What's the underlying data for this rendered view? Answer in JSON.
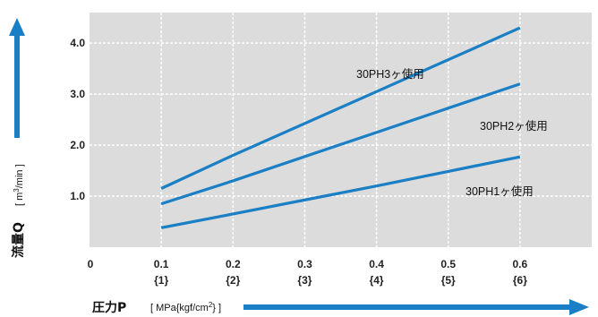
{
  "chart_data": {
    "type": "line",
    "title": "",
    "xlabel": "圧力P",
    "xunit": "MPa{kgf/cm²}",
    "xunit_parts": {
      "pre": "MPa{kgf/cm",
      "sup": "2",
      "post": "}"
    },
    "ylabel": "流量Q",
    "yunit": "m³/min",
    "yunit_parts": {
      "pre": "m",
      "sup": "3",
      "post": "/min"
    },
    "xlim": [
      0,
      0.7
    ],
    "ylim": [
      0,
      4.6
    ],
    "grid": true,
    "x_ticks": [
      {
        "v": 0,
        "label": "0",
        "sub": ""
      },
      {
        "v": 0.1,
        "label": "0.1",
        "sub": "{1}"
      },
      {
        "v": 0.2,
        "label": "0.2",
        "sub": "{2}"
      },
      {
        "v": 0.3,
        "label": "0.3",
        "sub": "{3}"
      },
      {
        "v": 0.4,
        "label": "0.4",
        "sub": "{4}"
      },
      {
        "v": 0.5,
        "label": "0.5",
        "sub": "{5}"
      },
      {
        "v": 0.6,
        "label": "0.6",
        "sub": "{6}"
      }
    ],
    "y_ticks": [
      {
        "v": 1.0,
        "label": "1.0"
      },
      {
        "v": 2.0,
        "label": "2.0"
      },
      {
        "v": 3.0,
        "label": "3.0"
      },
      {
        "v": 4.0,
        "label": "4.0"
      }
    ],
    "series": [
      {
        "name": "30PH3ヶ使用",
        "color": "#1a7fc4",
        "x": [
          0.1,
          0.2,
          0.4,
          0.6
        ],
        "y": [
          1.15,
          1.8,
          3.05,
          4.3
        ]
      },
      {
        "name": "30PH2ヶ使用",
        "color": "#1a7fc4",
        "x": [
          0.1,
          0.2,
          0.4,
          0.6
        ],
        "y": [
          0.85,
          1.3,
          2.25,
          3.2
        ]
      },
      {
        "name": "30PH1ヶ使用",
        "color": "#1a7fc4",
        "x": [
          0.1,
          0.2,
          0.4,
          0.6
        ],
        "y": [
          0.38,
          0.65,
          1.2,
          1.77
        ]
      }
    ]
  }
}
